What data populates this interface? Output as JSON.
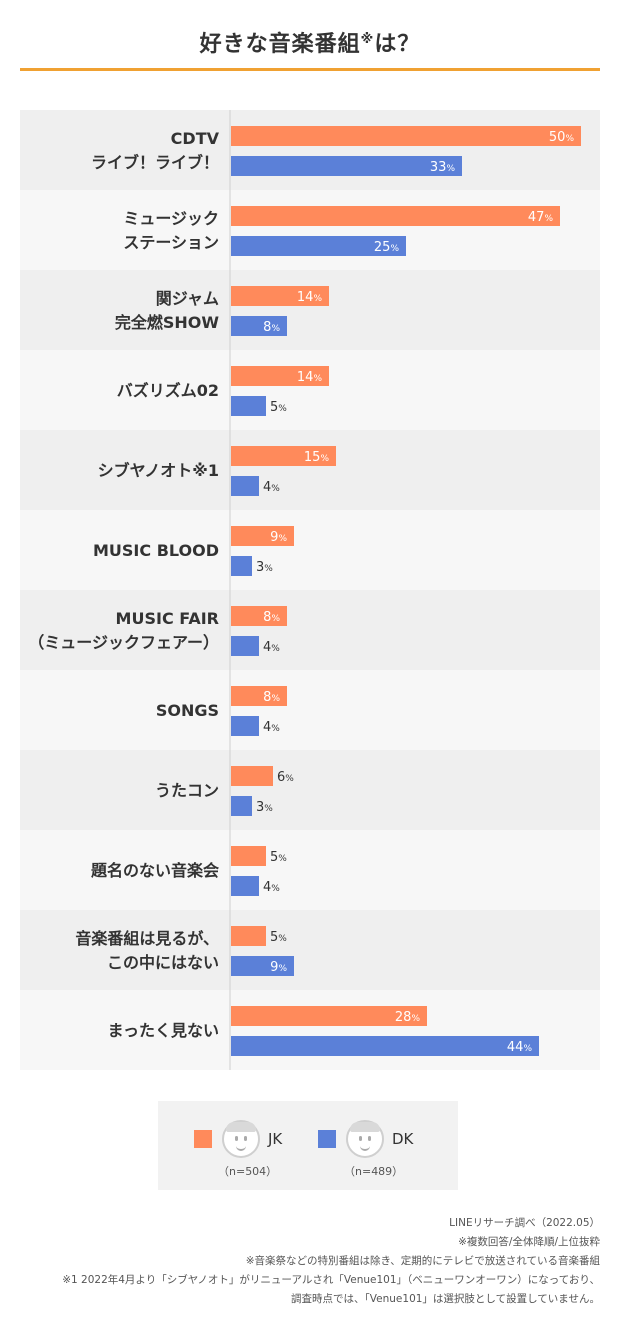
{
  "title": "好きな音楽番組",
  "title_mark": "※",
  "title_suffix": "は？",
  "chart_data": {
    "type": "bar",
    "orientation": "horizontal",
    "title": "好きな音楽番組※は？",
    "unit": "%",
    "xlim": [
      0,
      100
    ],
    "categories": [
      [
        "CDTV",
        "ライブ！ライブ！"
      ],
      [
        "ミュージック",
        "ステーション"
      ],
      [
        "関ジャム",
        "完全燃SHOW"
      ],
      [
        "バズリズム02"
      ],
      [
        "シブヤノオト※1"
      ],
      [
        "MUSIC BLOOD"
      ],
      [
        "MUSIC FAIR",
        "（ミュージックフェアー）"
      ],
      [
        "SONGS"
      ],
      [
        "うたコン"
      ],
      [
        "題名のない音楽会"
      ],
      [
        "音楽番組は見るが、",
        "この中にはない"
      ],
      [
        "まったく見ない"
      ]
    ],
    "series": [
      {
        "name": "JK",
        "color": "#FF8A5B",
        "values": [
          50,
          47,
          14,
          14,
          15,
          9,
          8,
          8,
          6,
          5,
          5,
          28
        ]
      },
      {
        "name": "DK",
        "color": "#5B80D8",
        "values": [
          33,
          25,
          8,
          5,
          4,
          3,
          4,
          4,
          3,
          4,
          9,
          44
        ]
      }
    ]
  },
  "legend": {
    "jk": {
      "label": "JK",
      "n": "（n=504）"
    },
    "dk": {
      "label": "DK",
      "n": "（n=489）"
    }
  },
  "notes": [
    "LINEリサーチ調べ（2022.05）",
    "※複数回答/全体降順/上位抜粋",
    "※音楽祭などの特別番組は除き、定期的にテレビで放送されている音楽番組",
    "※1 2022年4月より「シブヤノオト」がリニューアルされ「Venue101」（ベニューワンオーワン）になっており、",
    "調査時点では、「Venue101」は選択肢として設置していません。"
  ]
}
